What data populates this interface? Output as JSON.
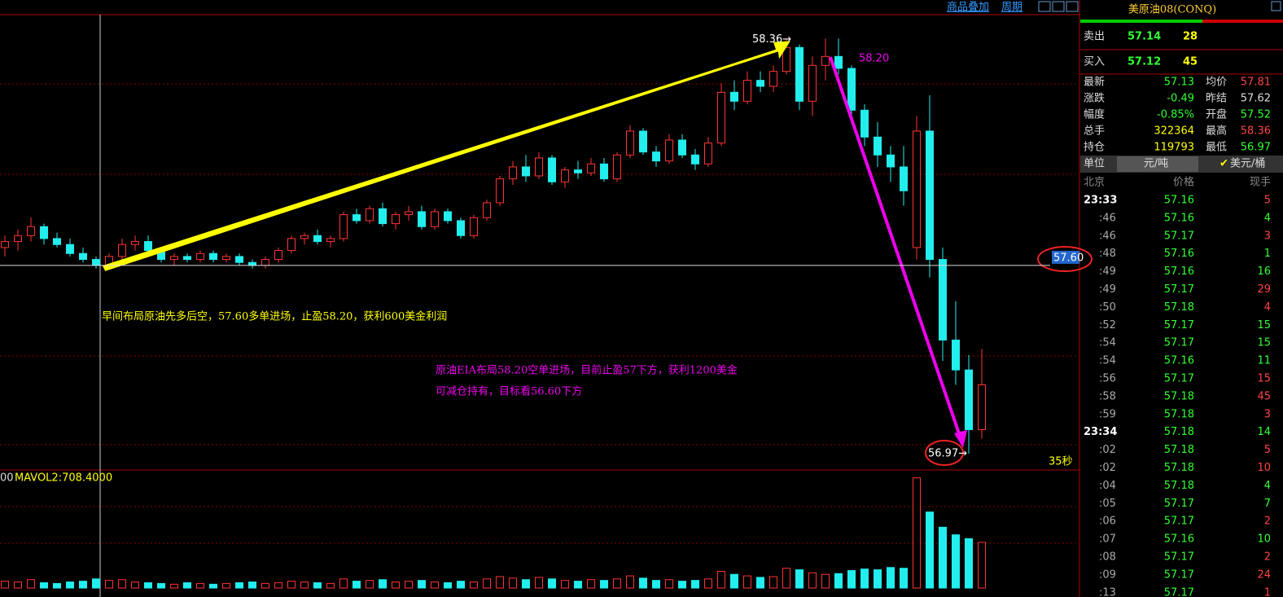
{
  "toolbar": {
    "overlay": "商品叠加",
    "period": "周期"
  },
  "chart": {
    "ylim": [
      56.915,
      58.44
    ],
    "volume_ylim": [
      0,
      1500
    ],
    "high_label": {
      "value": 58.36,
      "label": "58.36→"
    },
    "low_label": {
      "value": 56.97,
      "label": "56.97→"
    },
    "entry_label": {
      "value": 57.6,
      "label": "57.60"
    },
    "target_label": "58.20",
    "timer": "35秒",
    "volume_prefix": "00",
    "volume_label": "MAVOL2:708.4000",
    "note1": "早间布局原油先多后空，57.60多单进场，止盈58.20，获利600美金利润",
    "note2": [
      "原油EIA布局58.20空单进场，目前止盈57下方，获利1200美金",
      "可减仓持有，目标看56.60下方"
    ],
    "candles": [
      [
        57.66,
        57.7,
        57.63,
        57.68
      ],
      [
        57.68,
        57.72,
        57.65,
        57.7
      ],
      [
        57.7,
        57.76,
        57.68,
        57.73
      ],
      [
        57.73,
        57.74,
        57.67,
        57.69
      ],
      [
        57.69,
        57.71,
        57.66,
        57.67
      ],
      [
        57.67,
        57.69,
        57.63,
        57.64
      ],
      [
        57.64,
        57.66,
        57.61,
        57.62
      ],
      [
        57.62,
        57.63,
        57.59,
        57.6
      ],
      [
        57.6,
        57.64,
        57.59,
        57.63
      ],
      [
        57.63,
        57.69,
        57.62,
        57.67
      ],
      [
        57.67,
        57.7,
        57.65,
        57.68
      ],
      [
        57.68,
        57.7,
        57.64,
        57.65
      ],
      [
        57.65,
        57.66,
        57.61,
        57.62
      ],
      [
        57.62,
        57.64,
        57.6,
        57.63
      ],
      [
        57.63,
        57.64,
        57.61,
        57.62
      ],
      [
        57.62,
        57.65,
        57.61,
        57.64
      ],
      [
        57.64,
        57.65,
        57.61,
        57.62
      ],
      [
        57.62,
        57.64,
        57.61,
        57.63
      ],
      [
        57.63,
        57.64,
        57.6,
        57.61
      ],
      [
        57.61,
        57.62,
        57.59,
        57.6
      ],
      [
        57.6,
        57.63,
        57.59,
        57.62
      ],
      [
        57.62,
        57.66,
        57.61,
        57.65
      ],
      [
        57.65,
        57.7,
        57.64,
        57.69
      ],
      [
        57.69,
        57.71,
        57.67,
        57.7
      ],
      [
        57.7,
        57.72,
        57.67,
        57.68
      ],
      [
        57.68,
        57.7,
        57.66,
        57.69
      ],
      [
        57.69,
        57.78,
        57.68,
        57.77
      ],
      [
        57.77,
        57.79,
        57.74,
        57.75
      ],
      [
        57.75,
        57.8,
        57.74,
        57.79
      ],
      [
        57.79,
        57.81,
        57.73,
        57.74
      ],
      [
        57.74,
        57.78,
        57.72,
        57.77
      ],
      [
        57.77,
        57.8,
        57.75,
        57.78
      ],
      [
        57.78,
        57.8,
        57.72,
        57.73
      ],
      [
        57.73,
        57.79,
        57.72,
        57.78
      ],
      [
        57.78,
        57.79,
        57.74,
        57.75
      ],
      [
        57.75,
        57.76,
        57.69,
        57.7
      ],
      [
        57.7,
        57.77,
        57.69,
        57.76
      ],
      [
        57.76,
        57.82,
        57.75,
        57.81
      ],
      [
        57.81,
        57.9,
        57.8,
        57.89
      ],
      [
        57.89,
        57.95,
        57.87,
        57.93
      ],
      [
        57.93,
        57.97,
        57.88,
        57.9
      ],
      [
        57.9,
        57.98,
        57.89,
        57.96
      ],
      [
        57.96,
        57.97,
        57.87,
        57.88
      ],
      [
        57.88,
        57.93,
        57.86,
        57.92
      ],
      [
        57.92,
        57.95,
        57.89,
        57.91
      ],
      [
        57.91,
        57.96,
        57.9,
        57.94
      ],
      [
        57.94,
        57.96,
        57.88,
        57.89
      ],
      [
        57.89,
        57.98,
        57.88,
        57.97
      ],
      [
        57.97,
        58.07,
        57.96,
        58.05
      ],
      [
        58.05,
        58.06,
        57.97,
        57.98
      ],
      [
        57.98,
        58.0,
        57.93,
        57.95
      ],
      [
        57.95,
        58.04,
        57.94,
        58.02
      ],
      [
        58.02,
        58.04,
        57.96,
        57.97
      ],
      [
        57.97,
        57.99,
        57.92,
        57.94
      ],
      [
        57.94,
        58.03,
        57.93,
        58.01
      ],
      [
        58.01,
        58.21,
        58.0,
        58.18
      ],
      [
        58.18,
        58.22,
        58.12,
        58.15
      ],
      [
        58.15,
        58.25,
        58.14,
        58.22
      ],
      [
        58.22,
        58.25,
        58.18,
        58.2
      ],
      [
        58.2,
        58.27,
        58.18,
        58.25
      ],
      [
        58.25,
        58.36,
        58.24,
        58.33
      ],
      [
        58.33,
        58.34,
        58.12,
        58.15
      ],
      [
        58.15,
        58.3,
        58.1,
        58.27
      ],
      [
        58.27,
        58.36,
        58.22,
        58.3
      ],
      [
        58.3,
        58.36,
        58.24,
        58.26
      ],
      [
        58.26,
        58.27,
        58.1,
        58.12
      ],
      [
        58.12,
        58.14,
        58.0,
        58.03
      ],
      [
        58.03,
        58.08,
        57.93,
        57.97
      ],
      [
        57.97,
        58.0,
        57.88,
        57.93
      ],
      [
        57.93,
        58.0,
        57.8,
        57.85
      ],
      [
        57.66,
        58.1,
        57.62,
        58.05
      ],
      [
        58.05,
        58.17,
        57.56,
        57.62
      ],
      [
        57.62,
        57.66,
        57.28,
        57.35
      ],
      [
        57.35,
        57.48,
        57.2,
        57.25
      ],
      [
        57.25,
        57.3,
        56.97,
        57.05
      ],
      [
        57.05,
        57.32,
        57.02,
        57.2
      ]
    ],
    "volumes": [
      90,
      80,
      110,
      70,
      60,
      80,
      90,
      120,
      100,
      110,
      80,
      70,
      60,
      50,
      70,
      60,
      50,
      60,
      70,
      80,
      60,
      70,
      90,
      80,
      70,
      60,
      120,
      90,
      100,
      110,
      80,
      90,
      100,
      80,
      70,
      90,
      80,
      120,
      150,
      130,
      110,
      140,
      120,
      100,
      90,
      110,
      100,
      120,
      160,
      130,
      100,
      110,
      90,
      100,
      120,
      220,
      180,
      160,
      140,
      150,
      260,
      240,
      200,
      180,
      190,
      230,
      250,
      240,
      270,
      260,
      1450,
      1000,
      800,
      700,
      650,
      600
    ]
  },
  "quote": {
    "title": "美原油08(CONQ)",
    "sell": {
      "label": "卖出",
      "price": "57.14",
      "qty": "28"
    },
    "buy": {
      "label": "买入",
      "price": "57.12",
      "qty": "45"
    },
    "stats": [
      {
        "k1": "最新",
        "v1": "57.13",
        "c1": "#3f3",
        "k2": "均价",
        "v2": "57.81",
        "c2": "#f44"
      },
      {
        "k1": "涨跌",
        "v1": "-0.49",
        "c1": "#3f3",
        "k2": "昨结",
        "v2": "57.62",
        "c2": "#ddd"
      },
      {
        "k1": "幅度",
        "v1": "-0.85%",
        "c1": "#3f3",
        "k2": "开盘",
        "v2": "57.52",
        "c2": "#3f3"
      },
      {
        "k1": "总手",
        "v1": "322364",
        "c1": "#ff0",
        "k2": "最高",
        "v2": "58.36",
        "c2": "#f44"
      },
      {
        "k1": "持仓",
        "v1": "119793",
        "c1": "#ff0",
        "k2": "最低",
        "v2": "56.97",
        "c2": "#3f3"
      }
    ],
    "unit": {
      "label": "单位",
      "a": "元/吨",
      "b": "美元/桶"
    },
    "header": {
      "time": "北京",
      "price": "价格",
      "qty": "现手"
    },
    "ticks": [
      {
        "t": "23:33",
        "p": "57.16",
        "q": "5",
        "c": "#f44"
      },
      {
        "t": ":46",
        "p": "57.16",
        "q": "4",
        "c": "#3f3"
      },
      {
        "t": ":46",
        "p": "57.17",
        "q": "3",
        "c": "#f44"
      },
      {
        "t": ":48",
        "p": "57.16",
        "q": "1",
        "c": "#3f3"
      },
      {
        "t": ":49",
        "p": "57.16",
        "q": "16",
        "c": "#3f3"
      },
      {
        "t": ":49",
        "p": "57.17",
        "q": "29",
        "c": "#f44"
      },
      {
        "t": ":50",
        "p": "57.18",
        "q": "4",
        "c": "#f44"
      },
      {
        "t": ":52",
        "p": "57.17",
        "q": "15",
        "c": "#3f3"
      },
      {
        "t": ":54",
        "p": "57.17",
        "q": "15",
        "c": "#3f3"
      },
      {
        "t": ":54",
        "p": "57.16",
        "q": "11",
        "c": "#3f3"
      },
      {
        "t": ":56",
        "p": "57.17",
        "q": "15",
        "c": "#f44"
      },
      {
        "t": ":58",
        "p": "57.18",
        "q": "45",
        "c": "#f44"
      },
      {
        "t": ":59",
        "p": "57.18",
        "q": "3",
        "c": "#f44"
      },
      {
        "t": "23:34",
        "p": "57.18",
        "q": "14",
        "c": "#3f3"
      },
      {
        "t": ":02",
        "p": "57.18",
        "q": "5",
        "c": "#f44"
      },
      {
        "t": ":02",
        "p": "57.18",
        "q": "10",
        "c": "#f44"
      },
      {
        "t": ":04",
        "p": "57.18",
        "q": "4",
        "c": "#3f3"
      },
      {
        "t": ":05",
        "p": "57.17",
        "q": "7",
        "c": "#3f3"
      },
      {
        "t": ":06",
        "p": "57.17",
        "q": "2",
        "c": "#f44"
      },
      {
        "t": ":07",
        "p": "57.16",
        "q": "10",
        "c": "#3f3"
      },
      {
        "t": ":08",
        "p": "57.17",
        "q": "2",
        "c": "#f44"
      },
      {
        "t": ":09",
        "p": "57.17",
        "q": "24",
        "c": "#f44"
      },
      {
        "t": ":13",
        "p": "57.17",
        "q": "1",
        "c": "#f44"
      }
    ]
  }
}
